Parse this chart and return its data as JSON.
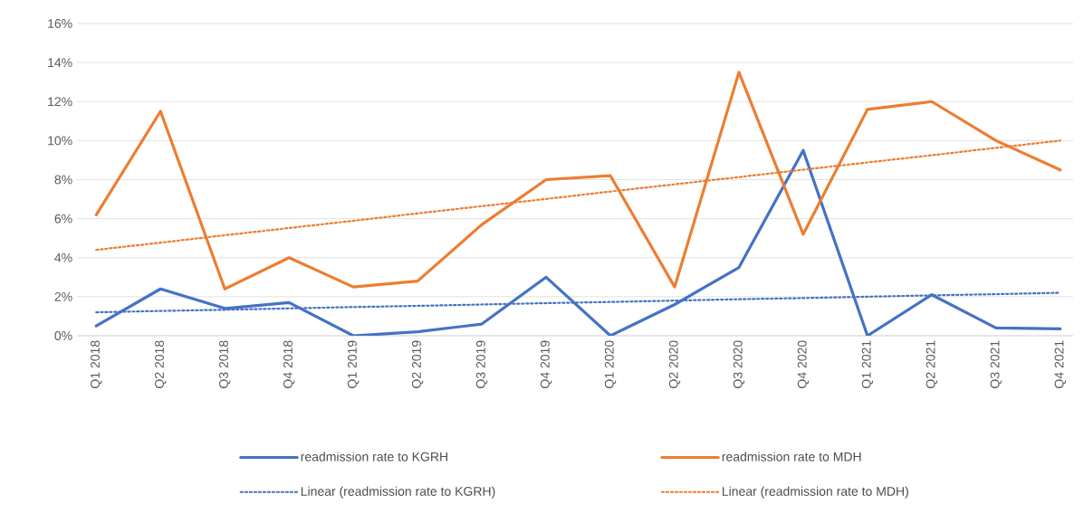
{
  "chart_data": {
    "type": "line",
    "categories": [
      "Q1 2018",
      "Q2 2018",
      "Q3 2018",
      "Q4 2018",
      "Q1 2019",
      "Q2 2019",
      "Q3 2019",
      "Q4 2019",
      "Q1 2020",
      "Q2 2020",
      "Q3 2020",
      "Q4 2020",
      "Q1 2021",
      "Q2 2021",
      "Q3 2021",
      "Q4 2021"
    ],
    "series": [
      {
        "name": "readmission rate to KGRH",
        "color": "#4472c4",
        "line_style": "solid",
        "values": [
          0.5,
          2.4,
          1.4,
          1.7,
          0.0,
          0.2,
          0.6,
          3.0,
          0.0,
          1.6,
          3.5,
          9.5,
          0.0,
          2.1,
          0.4,
          0.35
        ]
      },
      {
        "name": "readmission rate to MDH",
        "color": "#ed7d31",
        "line_style": "solid",
        "values": [
          6.2,
          11.5,
          2.4,
          4.0,
          2.5,
          2.8,
          5.7,
          8.0,
          8.2,
          2.5,
          13.5,
          5.2,
          11.6,
          12.0,
          10.0,
          8.5
        ]
      },
      {
        "name": "Linear (readmission rate to KGRH)",
        "color": "#4472c4",
        "type": "line",
        "line_style": "dotted",
        "values": [
          1.2,
          1.27,
          1.33,
          1.4,
          1.47,
          1.53,
          1.6,
          1.67,
          1.73,
          1.8,
          1.87,
          1.93,
          2.0,
          2.07,
          2.13,
          2.2
        ]
      },
      {
        "name": "Linear (readmission rate to MDH)",
        "color": "#ed7d31",
        "type": "line",
        "line_style": "dotted",
        "values": [
          4.4,
          4.77,
          5.15,
          5.52,
          5.89,
          6.27,
          6.64,
          7.01,
          7.39,
          7.76,
          8.13,
          8.51,
          8.88,
          9.25,
          9.63,
          10.0
        ]
      }
    ],
    "ylim": [
      0,
      16
    ],
    "yticks": [
      {
        "value": 0,
        "label": "0%"
      },
      {
        "value": 2,
        "label": "2%"
      },
      {
        "value": 4,
        "label": "4%"
      },
      {
        "value": 6,
        "label": "6%"
      },
      {
        "value": 8,
        "label": "8%"
      },
      {
        "value": 10,
        "label": "10%"
      },
      {
        "value": 12,
        "label": "12%"
      },
      {
        "value": 14,
        "label": "14%"
      },
      {
        "value": 16,
        "label": "16%"
      }
    ],
    "grid": "y",
    "legend": "bottom",
    "marker": "none"
  }
}
